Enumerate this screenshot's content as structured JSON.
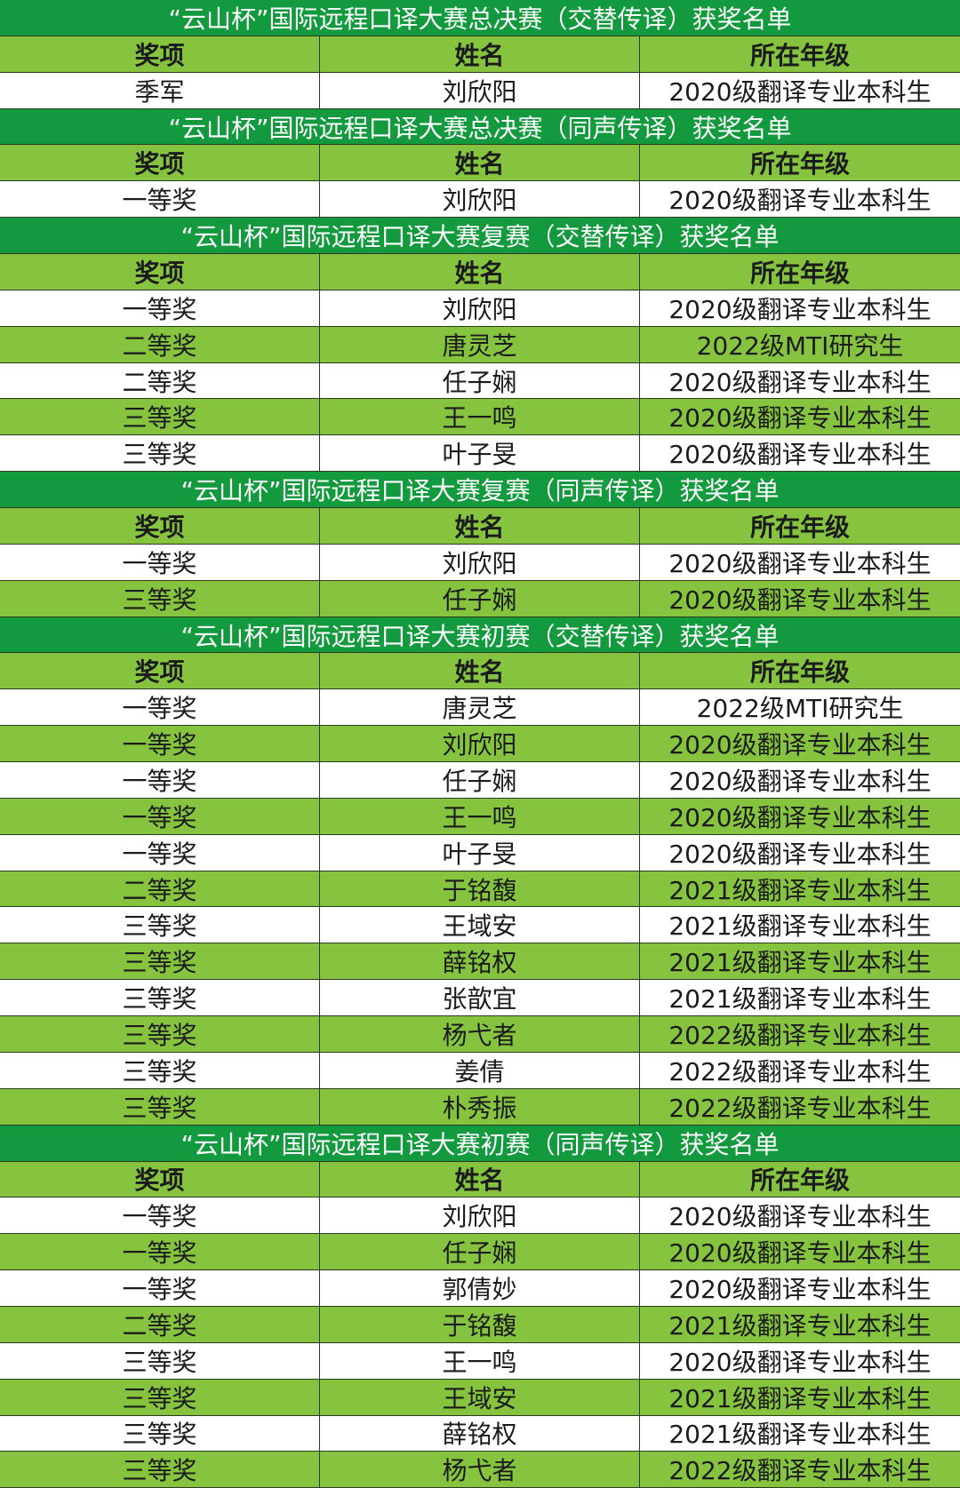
{
  "sections": [
    {
      "title": "“云山杯”国际远程口译大赛总决赛（交替传译）获奖名单",
      "headers": [
        "奖项",
        "姓名",
        "所在年级"
      ],
      "rows": [
        [
          "季军",
          "刘欣阳",
          "2020级翻译专业本科生"
        ]
      ]
    },
    {
      "title": "“云山杯”国际远程口译大赛总决赛（同声传译）获奖名单",
      "headers": [
        "奖项",
        "姓名",
        "所在年级"
      ],
      "rows": [
        [
          "一等奖",
          "刘欣阳",
          "2020级翻译专业本科生"
        ]
      ]
    },
    {
      "title": "“云山杯”国际远程口译大赛复赛（交替传译）获奖名单",
      "headers": [
        "奖项",
        "姓名",
        "所在年级"
      ],
      "rows": [
        [
          "一等奖",
          "刘欣阳",
          "2020级翻译专业本科生"
        ],
        [
          "二等奖",
          "唐灵芝",
          "2022级MTI研究生"
        ],
        [
          "二等奖",
          "任子娴",
          "2020级翻译专业本科生"
        ],
        [
          "三等奖",
          "王一鸣",
          "2020级翻译专业本科生"
        ],
        [
          "三等奖",
          "叶子旻",
          "2020级翻译专业本科生"
        ]
      ]
    },
    {
      "title": "“云山杯”国际远程口译大赛复赛（同声传译）获奖名单",
      "headers": [
        "奖项",
        "姓名",
        "所在年级"
      ],
      "rows": [
        [
          "一等奖",
          "刘欣阳",
          "2020级翻译专业本科生"
        ],
        [
          "三等奖",
          "任子娴",
          "2020级翻译专业本科生"
        ]
      ]
    },
    {
      "title": "“云山杯”国际远程口译大赛初赛（交替传译）获奖名单",
      "headers": [
        "奖项",
        "姓名",
        "所在年级"
      ],
      "rows": [
        [
          "一等奖",
          "唐灵芝",
          "2022级MTI研究生"
        ],
        [
          "一等奖",
          "刘欣阳",
          "2020级翻译专业本科生"
        ],
        [
          "一等奖",
          "任子娴",
          "2020级翻译专业本科生"
        ],
        [
          "一等奖",
          "王一鸣",
          "2020级翻译专业本科生"
        ],
        [
          "一等奖",
          "叶子旻",
          "2020级翻译专业本科生"
        ],
        [
          "二等奖",
          "于铭馥",
          "2021级翻译专业本科生"
        ],
        [
          "三等奖",
          "王域安",
          "2021级翻译专业本科生"
        ],
        [
          "三等奖",
          "薛铭权",
          "2021级翻译专业本科生"
        ],
        [
          "三等奖",
          "张歆宜",
          "2021级翻译专业本科生"
        ],
        [
          "三等奖",
          "杨弋者",
          "2022级翻译专业本科生"
        ],
        [
          "三等奖",
          "姜倩",
          "2022级翻译专业本科生"
        ],
        [
          "三等奖",
          "朴秀振",
          "2022级翻译专业本科生"
        ]
      ]
    },
    {
      "title": "“云山杯”国际远程口译大赛初赛（同声传译）获奖名单",
      "headers": [
        "奖项",
        "姓名",
        "所在年级"
      ],
      "rows": [
        [
          "一等奖",
          "刘欣阳",
          "2020级翻译专业本科生"
        ],
        [
          "一等奖",
          "任子娴",
          "2020级翻译专业本科生"
        ],
        [
          "一等奖",
          "郭倩妙",
          "2020级翻译专业本科生"
        ],
        [
          "二等奖",
          "于铭馥",
          "2021级翻译专业本科生"
        ],
        [
          "三等奖",
          "王一鸣",
          "2020级翻译专业本科生"
        ],
        [
          "三等奖",
          "王域安",
          "2021级翻译专业本科生"
        ],
        [
          "三等奖",
          "薛铭权",
          "2021级翻译专业本科生"
        ],
        [
          "三等奖",
          "杨弋者",
          "2022级翻译专业本科生"
        ]
      ]
    }
  ]
}
